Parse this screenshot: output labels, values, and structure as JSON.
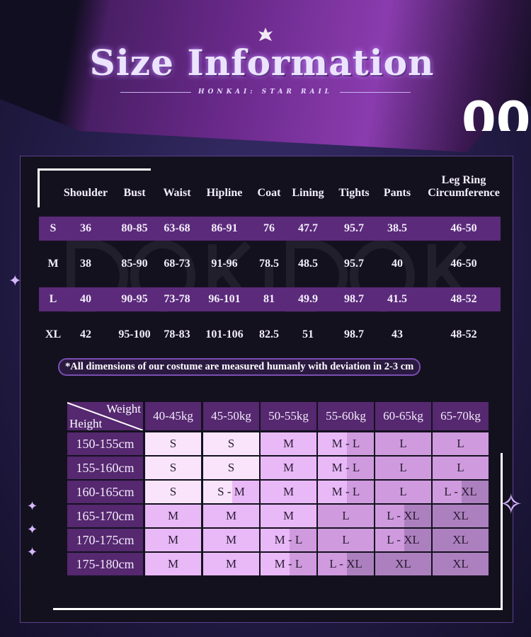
{
  "header": {
    "title": "Size Information",
    "subtitle": "HONKAI: STAR RAIL",
    "corner_number": "00",
    "watermark": "DOKiDOKi"
  },
  "measurements": {
    "columns": [
      "",
      "Shoulder",
      "Bust",
      "Waist",
      "Hipline",
      "Coat",
      "Lining",
      "Tights",
      "Pants",
      "Leg Ring Circumference"
    ],
    "leg_ring_line1": "Leg Ring",
    "leg_ring_line2": "Circumference",
    "rows": [
      [
        "S",
        "36",
        "80-85",
        "63-68",
        "86-91",
        "76",
        "47.7",
        "95.7",
        "38.5",
        "46-50"
      ],
      [
        "M",
        "38",
        "85-90",
        "68-73",
        "91-96",
        "78.5",
        "48.5",
        "95.7",
        "40",
        "46-50"
      ],
      [
        "L",
        "40",
        "90-95",
        "73-78",
        "96-101",
        "81",
        "49.9",
        "98.7",
        "41.5",
        "48-52"
      ],
      [
        "XL",
        "42",
        "95-100",
        "78-83",
        "101-106",
        "82.5",
        "51",
        "98.7",
        "43",
        "48-52"
      ]
    ],
    "note": "*All dimensions of our costume are measured humanly with deviation in 2-3 cm"
  },
  "size_guide": {
    "corner_weight": "Weight",
    "corner_height": "Height",
    "weights": [
      "40-45kg",
      "45-50kg",
      "50-55kg",
      "55-60kg",
      "60-65kg",
      "65-70kg"
    ],
    "heights": [
      "150-155cm",
      "155-160cm",
      "160-165cm",
      "165-170cm",
      "170-175cm",
      "175-180cm"
    ],
    "cells": [
      [
        "S",
        "S",
        "M",
        "M - L",
        "L",
        "L"
      ],
      [
        "S",
        "S",
        "M",
        "M - L",
        "L",
        "L"
      ],
      [
        "S",
        "S - M",
        "M",
        "M - L",
        "L",
        "L - XL"
      ],
      [
        "M",
        "M",
        "M",
        "L",
        "L - XL",
        "XL"
      ],
      [
        "M",
        "M",
        "M - L",
        "L",
        "L - XL",
        "XL"
      ],
      [
        "M",
        "M",
        "M - L",
        "L - XL",
        "XL",
        "XL"
      ]
    ],
    "size_colors": {
      "S": "#f9e4fb",
      "M": "#e8b9f6",
      "L": "#cf9bde",
      "XL": "#ac80be"
    }
  }
}
